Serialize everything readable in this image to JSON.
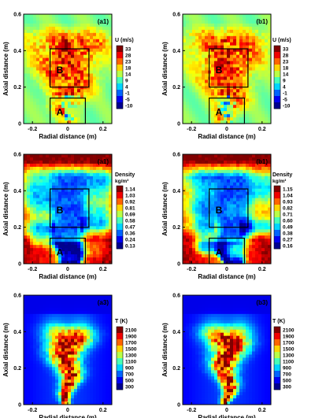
{
  "chart_data": [
    {
      "type": "heatmap",
      "panel_label": "(a1)",
      "quantity": "U",
      "colorbar_title": "U (m/s)",
      "colorbar_ticks": [
        "33",
        "28",
        "23",
        "18",
        "14",
        "9",
        "4",
        "-1",
        "-5",
        "-10"
      ],
      "xlabel": "Radial distance (m)",
      "ylabel": "Axial distance (m)",
      "xticks": [
        "-0.2",
        "0",
        "0.2"
      ],
      "yticks": [
        "0",
        "0.2",
        "0.4",
        "0.6"
      ],
      "xlim": [
        -0.25,
        0.25
      ],
      "ylim": [
        0,
        0.6
      ],
      "regions": [
        {
          "label": "A",
          "x": [
            -0.1,
            0.1
          ],
          "y": [
            0,
            0.14
          ]
        },
        {
          "label": "B",
          "x": [
            -0.1,
            0.12
          ],
          "y": [
            0.2,
            0.41
          ]
        }
      ]
    },
    {
      "type": "heatmap",
      "panel_label": "(b1)",
      "quantity": "U",
      "colorbar_title": "U (m/s)",
      "colorbar_ticks": [
        "33",
        "28",
        "23",
        "18",
        "14",
        "9",
        "4",
        "-1",
        "-5",
        "-10"
      ],
      "xlabel": "Radial distance (m)",
      "ylabel": "Axial distance (m)",
      "xticks": [
        "-0.2",
        "0",
        "0.2"
      ],
      "yticks": [
        "0",
        "0.2",
        "0.4",
        "0.6"
      ],
      "xlim": [
        -0.25,
        0.25
      ],
      "ylim": [
        0,
        0.6
      ],
      "regions": [
        {
          "label": "A",
          "x": [
            -0.1,
            0.1
          ],
          "y": [
            0,
            0.14
          ]
        },
        {
          "label": "B",
          "x": [
            -0.1,
            0.12
          ],
          "y": [
            0.2,
            0.41
          ]
        }
      ]
    },
    {
      "type": "heatmap",
      "panel_label": "(a1)",
      "quantity": "Density",
      "colorbar_title": "Density",
      "colorbar_unit": "kg/m³",
      "colorbar_ticks": [
        "1.14",
        "1.03",
        "0.92",
        "0.81",
        "0.69",
        "0.58",
        "0.47",
        "0.36",
        "0.24",
        "0.13"
      ],
      "xlabel": "Radial distance (m)",
      "ylabel": "Axial distance (m)",
      "xticks": [
        "-0.2",
        "0",
        "0.2"
      ],
      "yticks": [
        "0",
        "0.2",
        "0.4",
        "0.6"
      ],
      "xlim": [
        -0.25,
        0.25
      ],
      "ylim": [
        0,
        0.6
      ],
      "regions": [
        {
          "label": "A",
          "x": [
            -0.1,
            0.1
          ],
          "y": [
            0,
            0.14
          ]
        },
        {
          "label": "B",
          "x": [
            -0.1,
            0.12
          ],
          "y": [
            0.2,
            0.41
          ]
        }
      ]
    },
    {
      "type": "heatmap",
      "panel_label": "(b1)",
      "quantity": "Density",
      "colorbar_title": "Density",
      "colorbar_unit": "kg/m³",
      "colorbar_ticks": [
        "1.15",
        "1.04",
        "0.93",
        "0.82",
        "0.71",
        "0.60",
        "0.49",
        "0.38",
        "0.27",
        "0.16"
      ],
      "xlabel": "Radial distance (m)",
      "ylabel": "Axial distance (m)",
      "xticks": [
        "-0.2",
        "0",
        "0.2"
      ],
      "yticks": [
        "0",
        "0.2",
        "0.4",
        "0.6"
      ],
      "xlim": [
        -0.25,
        0.25
      ],
      "ylim": [
        0,
        0.6
      ],
      "regions": [
        {
          "label": "A",
          "x": [
            -0.1,
            0.1
          ],
          "y": [
            0,
            0.14
          ]
        },
        {
          "label": "B",
          "x": [
            -0.1,
            0.12
          ],
          "y": [
            0.2,
            0.41
          ]
        }
      ]
    },
    {
      "type": "heatmap",
      "panel_label": "(a3)",
      "quantity": "T",
      "colorbar_title": "T (K)",
      "colorbar_ticks": [
        "2100",
        "1900",
        "1700",
        "1500",
        "1300",
        "1100",
        "900",
        "700",
        "500",
        "300"
      ],
      "xlabel": "Radial distance (m)",
      "ylabel": "Axial distance (m)",
      "xticks": [
        "-0.2",
        "0",
        "0.2"
      ],
      "yticks": [
        "0",
        "0.2",
        "0.4",
        "0.6"
      ],
      "xlim": [
        -0.25,
        0.25
      ],
      "ylim": [
        0,
        0.6
      ],
      "regions": []
    },
    {
      "type": "heatmap",
      "panel_label": "(b3)",
      "quantity": "T",
      "colorbar_title": "T (K)",
      "colorbar_ticks": [
        "2100",
        "1900",
        "1700",
        "1500",
        "1300",
        "1100",
        "900",
        "700",
        "500",
        "300"
      ],
      "xlabel": "Radial distance (m)",
      "ylabel": "Axial distance (m)",
      "xticks": [
        "-0.2",
        "0",
        "0.2"
      ],
      "yticks": [
        "0",
        "0.2",
        "0.4",
        "0.6"
      ],
      "xlim": [
        -0.25,
        0.25
      ],
      "ylim": [
        0,
        0.6
      ],
      "regions": []
    }
  ],
  "colors": {
    "jet": [
      "#00008f",
      "#0000ff",
      "#0080ff",
      "#00ffff",
      "#80ff80",
      "#ffff00",
      "#ff8000",
      "#ff0000",
      "#800000"
    ]
  }
}
